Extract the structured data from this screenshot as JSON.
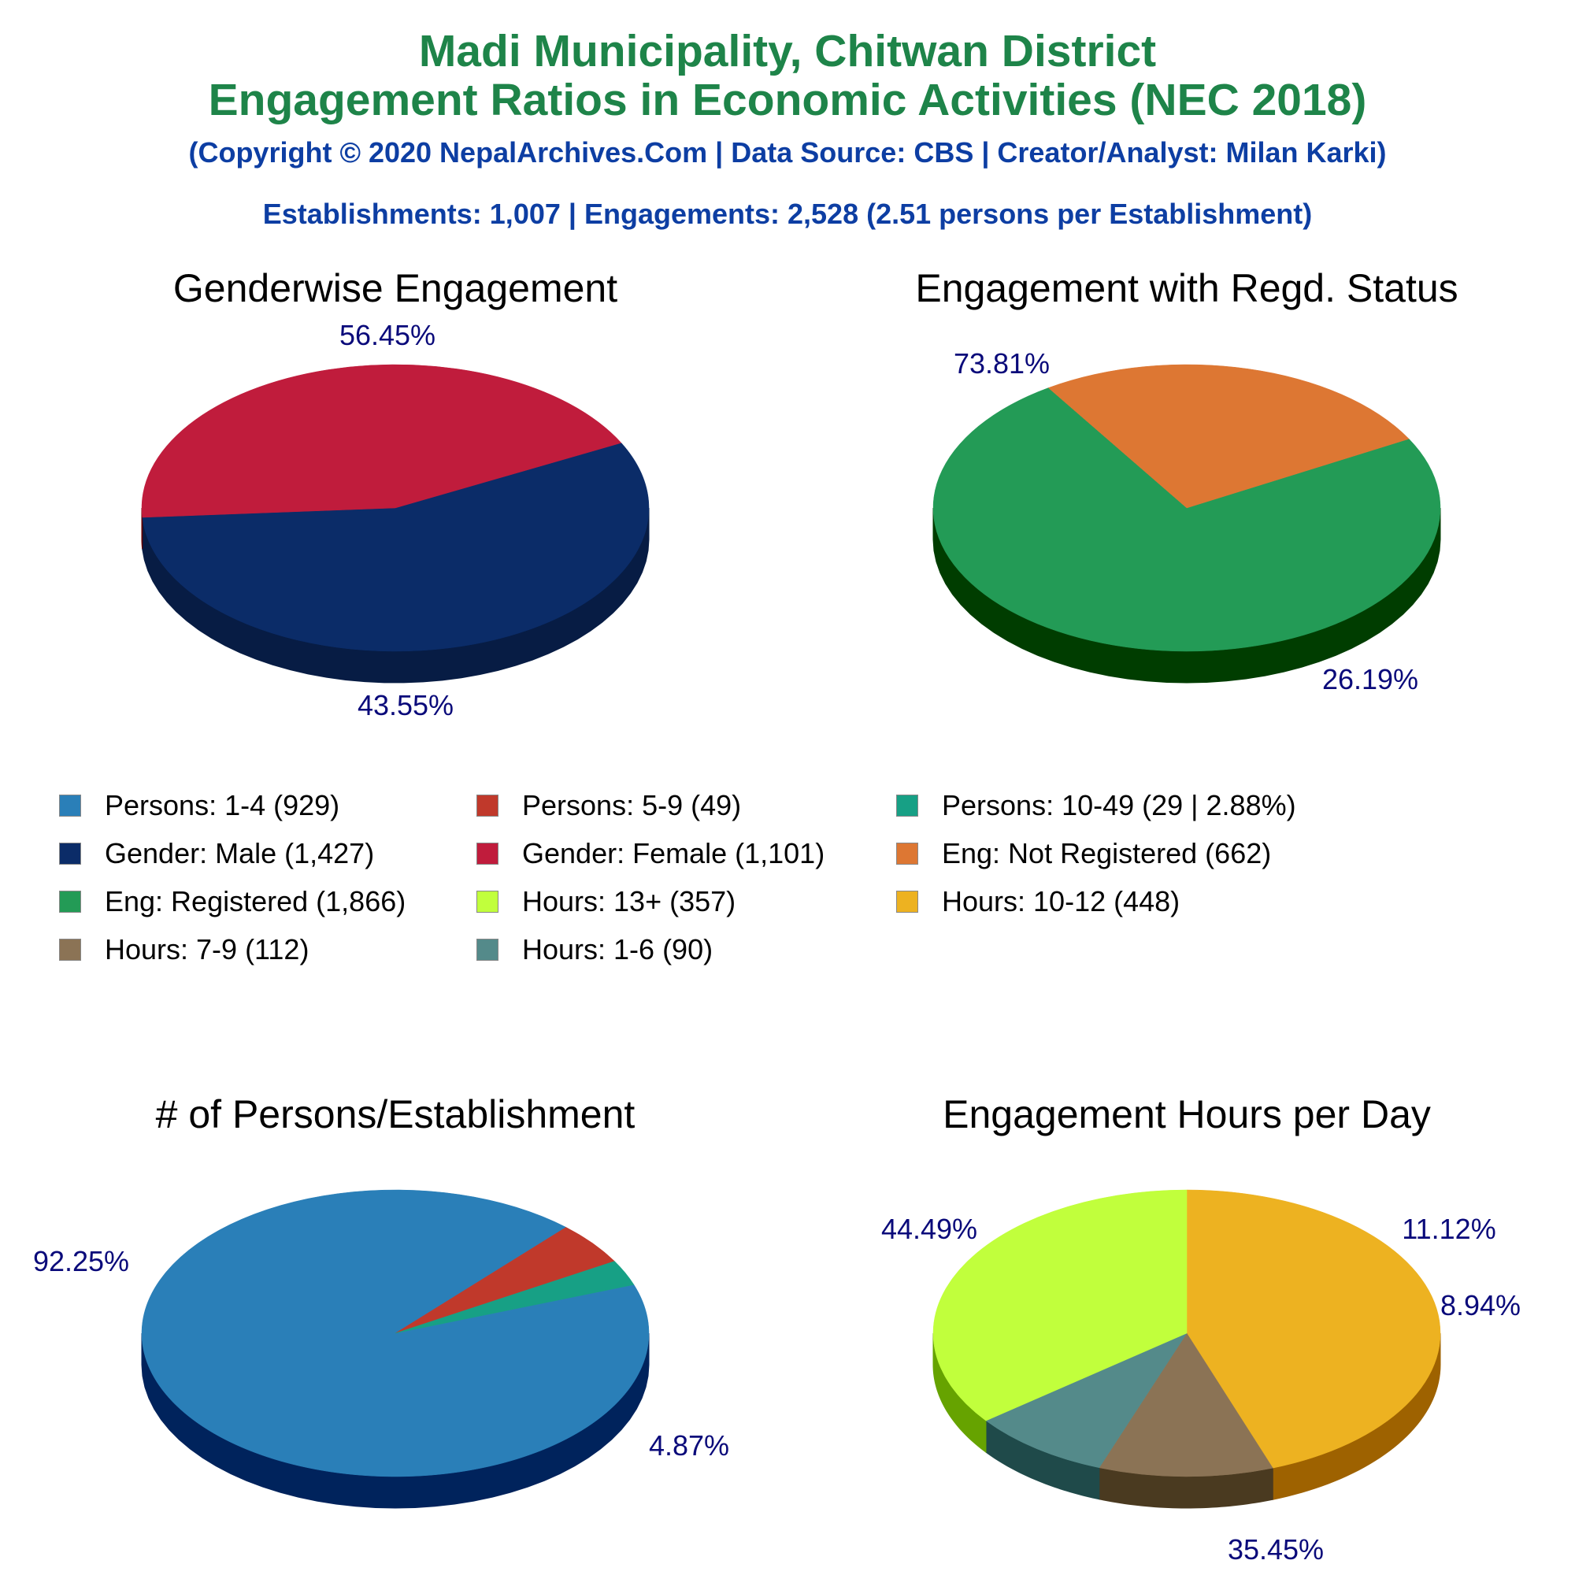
{
  "header": {
    "title_line1": "Madi Municipality, Chitwan District",
    "title_line2": "Engagement Ratios in Economic Activities (NEC 2018)",
    "subtitle": "(Copyright © 2020 NepalArchives.Com | Data Source: CBS | Creator/Analyst: Milan Karki)",
    "stats": "Establishments: 1,007 | Engagements: 2,528 (2.51 persons per Establishment)"
  },
  "legend": [
    {
      "label": "Persons: 1-4 (929)",
      "color": "#2a7fb8"
    },
    {
      "label": "Persons: 5-9 (49)",
      "color": "#c0392b"
    },
    {
      "label": "Persons: 10-49 (29 | 2.88%)",
      "color": "#17a085"
    },
    {
      "label": "Gender: Male (1,427)",
      "color": "#0b2c68"
    },
    {
      "label": "Gender: Female (1,101)",
      "color": "#c01c3c"
    },
    {
      "label": "Eng: Not Registered (662)",
      "color": "#dd7733"
    },
    {
      "label": "Eng: Registered (1,866)",
      "color": "#239b56"
    },
    {
      "label": "Hours: 13+ (357)",
      "color": "#c1ff3c"
    },
    {
      "label": "Hours: 10-12 (448)",
      "color": "#edb221"
    },
    {
      "label": "Hours: 7-9 (112)",
      "color": "#8b7355"
    },
    {
      "label": "Hours: 1-6 (90)",
      "color": "#548a8a"
    }
  ],
  "chart_data": [
    {
      "type": "pie",
      "title": "Genderwise Engagement",
      "slices": [
        {
          "label": "Gender: Male",
          "value": 1427,
          "percent_label": "56.45%",
          "color": "#0b2c68",
          "side_color": "#071c44"
        },
        {
          "label": "Gender: Female",
          "value": 1101,
          "percent_label": "43.55%",
          "color": "#c01c3c",
          "side_color": "#660000"
        }
      ]
    },
    {
      "type": "pie",
      "title": "Engagement with Regd. Status",
      "slices": [
        {
          "label": "Eng: Registered",
          "value": 1866,
          "percent_label": "73.81%",
          "color": "#239b56",
          "side_color": "#003d00"
        },
        {
          "label": "Eng: Not Registered",
          "value": 662,
          "percent_label": "26.19%",
          "color": "#dd7733",
          "side_color": "#7a1a00"
        }
      ]
    },
    {
      "type": "pie",
      "title": "# of Persons/Establishment",
      "slices": [
        {
          "label": "Persons: 1-4",
          "value": 929,
          "percent_label": "92.25%",
          "color": "#2a7fb8",
          "side_color": "#00235c"
        },
        {
          "label": "Persons: 5-9",
          "value": 49,
          "percent_label": "4.87%",
          "color": "#c0392b",
          "side_color": "#660000"
        },
        {
          "label": "Persons: 10-49",
          "value": 29,
          "percent_label": "",
          "color": "#17a085",
          "side_color": "#004433"
        }
      ]
    },
    {
      "type": "pie",
      "title": "Engagement Hours per Day",
      "slices": [
        {
          "label": "Hours: 10-12",
          "value": 448,
          "percent_label": "44.49%",
          "color": "#edb221",
          "side_color": "#9e6200"
        },
        {
          "label": "Hours: 7-9",
          "value": 112,
          "percent_label": "11.12%",
          "color": "#8b7355",
          "side_color": "#4a3a20"
        },
        {
          "label": "Hours: 1-6",
          "value": 90,
          "percent_label": "8.94%",
          "color": "#548a8a",
          "side_color": "#1f4a4a"
        },
        {
          "label": "Hours: 13+",
          "value": 357,
          "percent_label": "35.45%",
          "color": "#c1ff3c",
          "side_color": "#66a300"
        }
      ]
    }
  ]
}
